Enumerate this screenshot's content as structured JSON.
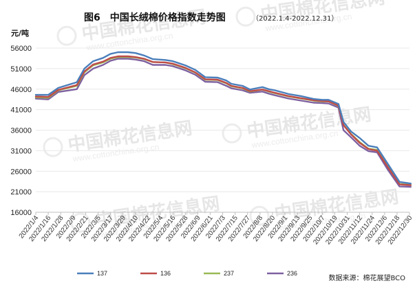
{
  "chart_data": {
    "type": "line",
    "title": "图6　中国长绒棉价格指数走势图",
    "subtitle": "（2022.1.4-2022.12.31）",
    "ylabel": "元/吨",
    "ylim": [
      16000,
      56000
    ],
    "yticks": [
      16000,
      21000,
      26000,
      31000,
      36000,
      41000,
      46000,
      51000,
      56000
    ],
    "xtick_labels": [
      "2022/1/4",
      "2022/1/16",
      "2022/1/28",
      "2022/2/9",
      "2022/2/21",
      "2022/3/5",
      "2022/3/17",
      "2022/3/29",
      "2022/4/10",
      "2022/4/22",
      "2022/5/4",
      "2022/5/16",
      "2022/5/28",
      "2022/6/9",
      "2022/6/21",
      "2022/7/3",
      "2022/7/15",
      "2022/7/27",
      "2022/8/8",
      "2022/8/20",
      "2022/9/1",
      "2022/9/13",
      "2022/9/25",
      "2022/10/7",
      "2022/10/19",
      "2022/10/31",
      "2022/11/12",
      "2022/11/24",
      "2022/12/6",
      "2022/12/18",
      "2022/12/30"
    ],
    "legend_position": "bottom",
    "source": "数据来源：棉花展望BCO",
    "watermark": {
      "text": "中国棉花信息网",
      "url": "www.cottonchina.org.cn"
    },
    "series": [
      {
        "name": "137",
        "color": "#4a7ebb",
        "x": [
          0,
          1,
          1.8,
          3.3,
          3.9,
          4.6,
          5.4,
          6.0,
          6.6,
          7.4,
          8.0,
          8.7,
          9.4,
          10.4,
          11.0,
          12.0,
          12.8,
          13.6,
          14.6,
          15.3,
          15.7,
          16.6,
          17.2,
          18.2,
          18.7,
          19.2,
          20.3,
          21.3,
          22.3,
          23.0,
          23.5,
          24.3,
          24.7,
          25.3,
          26.0,
          26.7,
          27.4,
          28.3,
          29.2,
          30.1
        ],
        "values": [
          44600,
          44600,
          46300,
          47700,
          51000,
          52800,
          53600,
          54600,
          55000,
          55000,
          54800,
          54200,
          53300,
          53100,
          52800,
          51800,
          50700,
          48900,
          48800,
          48100,
          47300,
          46800,
          45900,
          46500,
          46000,
          45700,
          44800,
          44300,
          43600,
          43400,
          43400,
          42400,
          38000,
          35700,
          34100,
          32200,
          31800,
          27600,
          23400,
          23000
        ]
      },
      {
        "name": "136",
        "color": "#be4b48",
        "x": [
          0,
          1,
          1.8,
          3.3,
          3.9,
          4.6,
          5.4,
          6.0,
          6.6,
          7.4,
          8.0,
          8.7,
          9.4,
          10.4,
          11.0,
          12.0,
          12.8,
          13.6,
          14.6,
          15.3,
          15.7,
          16.6,
          17.2,
          18.2,
          18.7,
          19.2,
          20.3,
          21.3,
          22.3,
          23.0,
          23.5,
          24.3,
          24.7,
          25.3,
          26.0,
          26.7,
          27.4,
          28.3,
          29.2,
          30.1
        ],
        "values": [
          44200,
          44100,
          45800,
          47000,
          50300,
          52000,
          52700,
          53600,
          54000,
          54000,
          53800,
          53400,
          52600,
          52500,
          52200,
          51200,
          50100,
          48400,
          48300,
          47500,
          46800,
          46300,
          45500,
          45900,
          45500,
          45100,
          44300,
          43800,
          43300,
          43100,
          43000,
          42000,
          37200,
          35000,
          32900,
          31400,
          31000,
          26800,
          22800,
          22600
        ]
      },
      {
        "name": "237",
        "color": "#98b954",
        "x": [
          0,
          1,
          1.8,
          3.3,
          3.9,
          4.6,
          5.4,
          6.0,
          6.6,
          7.4,
          8.0,
          8.7,
          9.4,
          10.4,
          11.0,
          12.0,
          12.8,
          13.6,
          14.6,
          15.3,
          15.7,
          16.6,
          17.2,
          18.2,
          18.7,
          19.2,
          20.3,
          21.3,
          22.3,
          23.0,
          23.5,
          24.3,
          24.7,
          25.3,
          26.0,
          26.7,
          27.4,
          28.3,
          29.2,
          30.1
        ],
        "values": [
          44000,
          43900,
          45700,
          46800,
          50100,
          51800,
          52500,
          53400,
          53800,
          53800,
          53700,
          53300,
          52600,
          52500,
          52100,
          51100,
          50000,
          48300,
          48200,
          47400,
          46700,
          46200,
          45400,
          45900,
          45400,
          45000,
          44200,
          43700,
          43200,
          43000,
          43000,
          41900,
          37300,
          35100,
          33100,
          31500,
          31200,
          27000,
          22900,
          22700
        ]
      },
      {
        "name": "236",
        "color": "#7d60a0",
        "x": [
          0,
          1,
          1.8,
          3.3,
          3.9,
          4.6,
          5.4,
          6.0,
          6.6,
          7.4,
          8.0,
          8.7,
          9.4,
          10.4,
          11.0,
          12.0,
          12.8,
          13.6,
          14.6,
          15.3,
          15.7,
          16.6,
          17.2,
          18.2,
          18.7,
          19.2,
          20.3,
          21.3,
          22.3,
          23.0,
          23.5,
          24.3,
          24.7,
          25.3,
          26.0,
          26.7,
          27.4,
          28.3,
          29.2,
          30.1
        ],
        "values": [
          43700,
          43500,
          45300,
          46000,
          49400,
          51000,
          51900,
          52900,
          53400,
          53400,
          53200,
          52800,
          51900,
          51900,
          51600,
          50600,
          49500,
          47800,
          47700,
          46800,
          46200,
          45700,
          45100,
          45400,
          44900,
          44500,
          43700,
          43200,
          42700,
          42600,
          42500,
          41500,
          36000,
          34300,
          32200,
          30900,
          30600,
          26200,
          22300,
          22200
        ]
      }
    ]
  }
}
